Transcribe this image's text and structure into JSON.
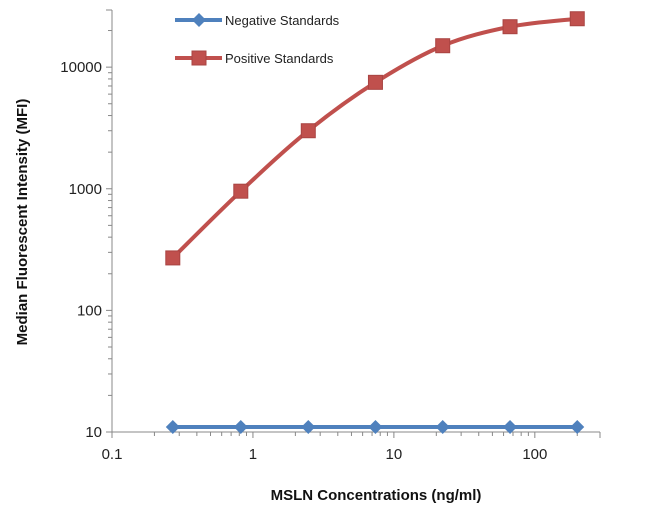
{
  "chart_data": {
    "type": "line",
    "title": "",
    "xlabel": "MSLN Concentrations (ng/ml)",
    "ylabel": "Median Fluorescent Intensity (MFI)",
    "xscale": "log",
    "yscale": "log",
    "xlim": [
      0.1,
      290
    ],
    "ylim": [
      10,
      29500
    ],
    "xticks": [
      "0.1",
      "1",
      "10",
      "100"
    ],
    "xtick_values": [
      0.1,
      1,
      10,
      100
    ],
    "yticks": [
      "10",
      "100",
      "1000",
      "10000"
    ],
    "ytick_values": [
      10,
      100,
      1000,
      10000
    ],
    "grid": false,
    "legend_position": "top-left",
    "x": [
      0.27,
      0.82,
      2.47,
      7.4,
      22.2,
      66.7,
      200
    ],
    "series": [
      {
        "name": "Negative Standards",
        "color": "#4F81BD",
        "marker": "diamond",
        "values": [
          11,
          11,
          11,
          11,
          11,
          11,
          11
        ]
      },
      {
        "name": "Positive Standards",
        "color": "#C0504D",
        "marker": "square",
        "values": [
          270,
          955,
          3000,
          7500,
          15000,
          21500,
          25000
        ]
      }
    ]
  }
}
